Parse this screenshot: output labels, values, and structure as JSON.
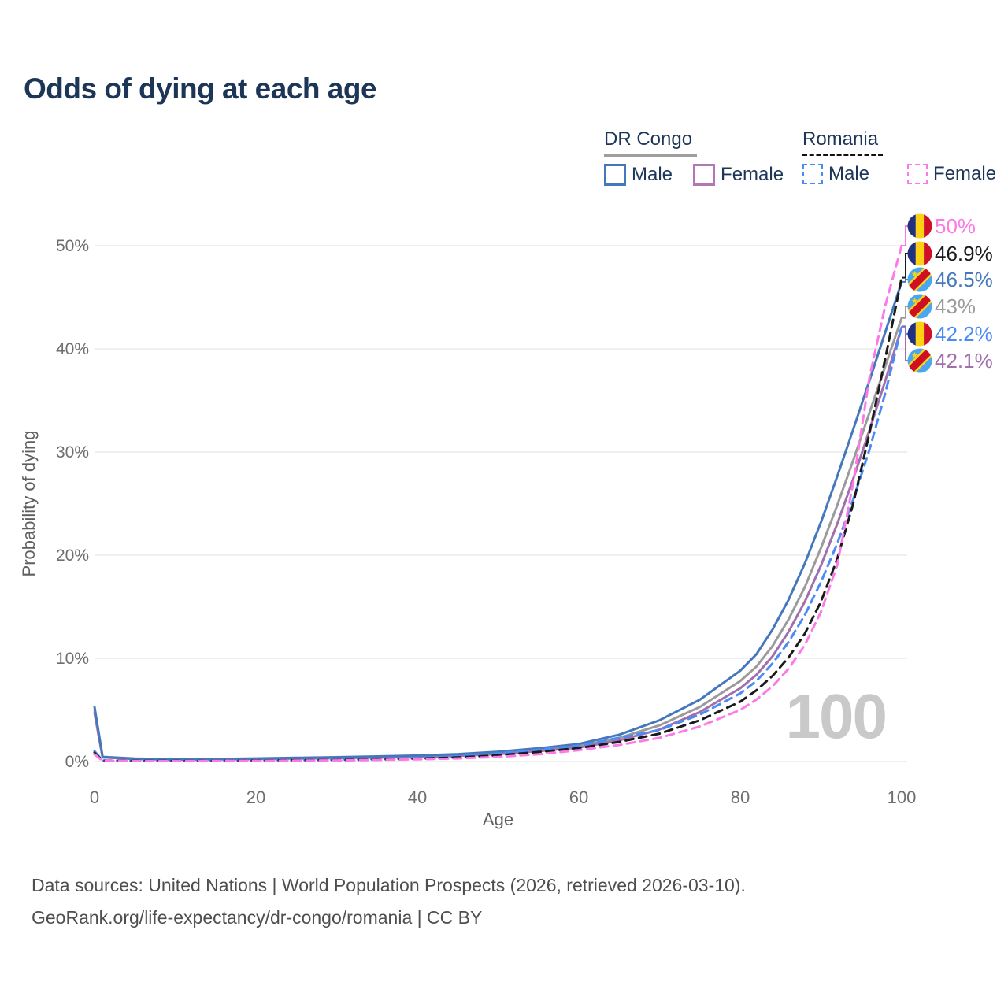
{
  "title": "Odds of dying at each age",
  "watermark_age": "100",
  "legend": {
    "groups": [
      {
        "name": "DR Congo",
        "line_style": "solid",
        "underline_color": "#9e9e9e",
        "items": [
          {
            "label": "Male",
            "color": "#4478bb",
            "dashed": false
          },
          {
            "label": "Female",
            "color": "#b178b4",
            "dashed": false
          }
        ]
      },
      {
        "name": "Romania",
        "line_style": "dashed",
        "underline_color": "#111111",
        "items": [
          {
            "label": "Male",
            "color": "#4b8bf5",
            "dashed": true
          },
          {
            "label": "Female",
            "color": "#fb7ae6",
            "dashed": true
          }
        ]
      }
    ]
  },
  "footer": {
    "line1": "Data sources: United Nations | World Population Prospects (2026, retrieved 2026-03-10).",
    "line2": "GeoRank.org/life-expectancy/dr-congo/romania | CC BY"
  },
  "chart_data": {
    "type": "line",
    "title": "Odds of dying at each age",
    "xlabel": "Age",
    "ylabel": "Probability of dying",
    "xlim": [
      0,
      100
    ],
    "ylim_percent": [
      0,
      52
    ],
    "x_ticks": [
      0,
      20,
      40,
      60,
      80,
      100
    ],
    "y_ticks": [
      "0%",
      "10%",
      "20%",
      "30%",
      "40%",
      "50%"
    ],
    "grid": "horizontal-only",
    "legend_position": "top-right",
    "current_age_indicator": "100",
    "x": [
      0,
      1,
      5,
      10,
      15,
      20,
      25,
      30,
      35,
      40,
      45,
      50,
      55,
      60,
      65,
      70,
      75,
      80,
      82,
      84,
      86,
      88,
      90,
      92,
      94,
      96,
      98,
      100
    ],
    "series": [
      {
        "name": "DR Congo Both sexes",
        "country": "DR Congo",
        "sex": "both",
        "flag_icon": "dr-congo-flag-icon",
        "flag": "cd",
        "color": "#9b9b9b",
        "dashed": false,
        "end_label": "43%",
        "values": [
          5.0,
          0.42,
          0.26,
          0.2,
          0.22,
          0.27,
          0.32,
          0.37,
          0.44,
          0.51,
          0.63,
          0.83,
          1.12,
          1.5,
          2.3,
          3.5,
          5.3,
          7.8,
          9.2,
          11.2,
          13.8,
          16.9,
          20.7,
          24.8,
          29.2,
          33.8,
          38.4,
          43.0
        ]
      },
      {
        "name": "DR Congo Female",
        "country": "DR Congo",
        "sex": "female",
        "flag_icon": "dr-congo-flag-icon",
        "flag": "cd",
        "color": "#a26fad",
        "dashed": false,
        "end_label": "42.1%",
        "values": [
          4.7,
          0.4,
          0.24,
          0.18,
          0.2,
          0.24,
          0.28,
          0.33,
          0.38,
          0.45,
          0.55,
          0.72,
          1.0,
          1.35,
          2.05,
          3.1,
          4.8,
          7.1,
          8.4,
          10.2,
          12.6,
          15.5,
          19.0,
          23.0,
          27.4,
          32.1,
          37.0,
          42.1
        ]
      },
      {
        "name": "DR Congo Male",
        "country": "DR Congo",
        "sex": "male",
        "flag_icon": "dr-congo-flag-icon",
        "flag": "cd",
        "color": "#4478bb",
        "dashed": false,
        "end_label": "46.5%",
        "values": [
          5.3,
          0.45,
          0.28,
          0.22,
          0.25,
          0.3,
          0.36,
          0.42,
          0.5,
          0.58,
          0.72,
          0.95,
          1.28,
          1.7,
          2.6,
          4.0,
          6.0,
          8.8,
          10.4,
          12.8,
          15.7,
          19.2,
          23.2,
          27.6,
          32.2,
          36.9,
          41.7,
          46.5
        ]
      },
      {
        "name": "Romania Male",
        "country": "Romania",
        "sex": "male",
        "flag_icon": "romania-flag-icon",
        "flag": "ro",
        "color": "#4b8bf5",
        "dashed": true,
        "end_label": "42.2%",
        "values": [
          1.0,
          0.09,
          0.06,
          0.06,
          0.09,
          0.12,
          0.14,
          0.17,
          0.23,
          0.33,
          0.5,
          0.78,
          1.15,
          1.55,
          2.3,
          3.05,
          4.55,
          6.6,
          7.8,
          9.5,
          11.6,
          14.2,
          17.4,
          21.1,
          25.4,
          30.2,
          35.8,
          42.2
        ]
      },
      {
        "name": "Romania Both sexes",
        "country": "Romania",
        "sex": "both",
        "flag_icon": "romania-flag-icon",
        "flag": "ro",
        "color": "#1a1a1a",
        "dashed": true,
        "end_label": "46.9%",
        "values": [
          0.85,
          0.08,
          0.05,
          0.05,
          0.07,
          0.1,
          0.12,
          0.14,
          0.19,
          0.27,
          0.4,
          0.6,
          0.92,
          1.3,
          1.9,
          2.7,
          4.0,
          5.8,
          6.9,
          8.3,
          10.1,
          12.4,
          15.5,
          19.6,
          25.0,
          31.8,
          39.2,
          46.9
        ]
      },
      {
        "name": "Romania Female",
        "country": "Romania",
        "sex": "female",
        "flag_icon": "romania-flag-icon",
        "flag": "ro",
        "color": "#fb7ae6",
        "dashed": true,
        "end_label": "50%",
        "values": [
          0.7,
          0.07,
          0.04,
          0.04,
          0.06,
          0.07,
          0.09,
          0.11,
          0.15,
          0.21,
          0.3,
          0.44,
          0.7,
          1.1,
          1.6,
          2.3,
          3.4,
          5.0,
          6.0,
          7.3,
          9.0,
          11.3,
          14.5,
          19.0,
          27.0,
          37.2,
          44.3,
          50.0
        ]
      }
    ],
    "flag_colors": {
      "romania": {
        "blue": "#21317d",
        "yellow": "#fcd116",
        "red": "#ce1126"
      },
      "dr_congo": {
        "sky_blue": "#4ba6ef",
        "yellow": "#f7d618",
        "red": "#ce1021"
      }
    }
  }
}
